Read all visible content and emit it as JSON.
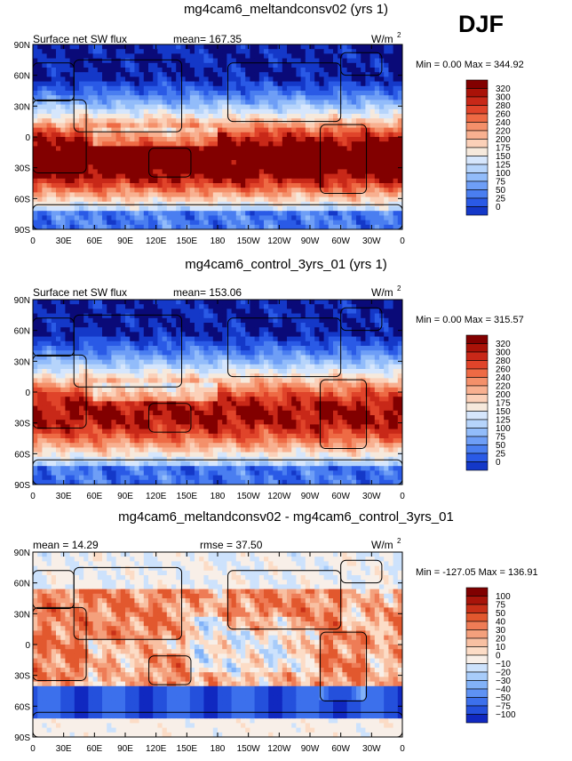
{
  "season": "DJF",
  "colors": {
    "abs_scale": [
      "#0a0a78",
      "#1438c8",
      "#2a5ae6",
      "#4a7ef0",
      "#6e9ef6",
      "#92bcfa",
      "#b6d4fb",
      "#d6e6fc",
      "#f6e9dc",
      "#fbd0b8",
      "#f8b090",
      "#f4906a",
      "#ee6a44",
      "#e0442a",
      "#c82818",
      "#aa1208",
      "#820000"
    ],
    "diff_scale": [
      "#05057a",
      "#1028c0",
      "#2450dc",
      "#3c70ec",
      "#5e92f4",
      "#82b2f8",
      "#a8ccfa",
      "#cde2fc",
      "#f8efe8",
      "#fcdcc6",
      "#f8c0a2",
      "#f4a07c",
      "#ee7c56",
      "#e2582e",
      "#c83018",
      "#a8140a",
      "#800000"
    ]
  },
  "chart_data": [
    {
      "type": "heatmap",
      "title": "mg4cam6_meltandconsv02 (yrs 1)",
      "variable": "Surface net SW flux",
      "mean_label": "mean= 167.35",
      "units": "W/m",
      "units_sup": "2",
      "minmax_label": "Min =    0.00 Max = 344.92",
      "min": 0.0,
      "max": 344.92,
      "lat_ticks": [
        "90N",
        "60N",
        "30N",
        "0",
        "30S",
        "60S",
        "90S"
      ],
      "lon_ticks": [
        "0",
        "30E",
        "60E",
        "90E",
        "120E",
        "150E",
        "180",
        "150W",
        "120W",
        "90W",
        "60W",
        "30W",
        "0"
      ],
      "colorbar_labels": [
        "320",
        "300",
        "280",
        "260",
        "240",
        "220",
        "200",
        "175",
        "150",
        "125",
        "100",
        "75",
        "50",
        "25",
        "0"
      ],
      "colorbar_levels": [
        0,
        25,
        50,
        75,
        100,
        125,
        150,
        175,
        200,
        220,
        240,
        260,
        280,
        300,
        320
      ],
      "mode": "exp"
    },
    {
      "type": "heatmap",
      "title": "mg4cam6_control_3yrs_01 (yrs 1)",
      "variable": "Surface net SW flux",
      "mean_label": "mean= 153.06",
      "units": "W/m",
      "units_sup": "2",
      "minmax_label": "Min =    0.00 Max = 315.57",
      "min": 0.0,
      "max": 315.57,
      "lat_ticks": [
        "90N",
        "60N",
        "30N",
        "0",
        "30S",
        "60S",
        "90S"
      ],
      "lon_ticks": [
        "0",
        "30E",
        "60E",
        "90E",
        "120E",
        "150E",
        "180",
        "150W",
        "120W",
        "90W",
        "60W",
        "30W",
        "0"
      ],
      "colorbar_labels": [
        "320",
        "300",
        "280",
        "260",
        "240",
        "220",
        "200",
        "175",
        "150",
        "125",
        "100",
        "75",
        "50",
        "25",
        "0"
      ],
      "colorbar_levels": [
        0,
        25,
        50,
        75,
        100,
        125,
        150,
        175,
        200,
        220,
        240,
        260,
        280,
        300,
        320
      ],
      "mode": "ctl"
    },
    {
      "type": "heatmap",
      "title": "mg4cam6_meltandconsv02 - mg4cam6_control_3yrs_01",
      "variable": "",
      "mean_label": "mean =  14.29",
      "rmse_label": "rmse =  37.50",
      "units": "W/m",
      "units_sup": "2",
      "minmax_label": "Min = -127.05 Max = 136.91",
      "min": -127.05,
      "max": 136.91,
      "lat_ticks": [
        "90N",
        "60N",
        "30N",
        "0",
        "30S",
        "60S",
        "90S"
      ],
      "lon_ticks": [
        "0",
        "30E",
        "60E",
        "90E",
        "120E",
        "150E",
        "180",
        "150W",
        "120W",
        "90W",
        "60W",
        "30W",
        "0"
      ],
      "colorbar_labels": [
        "100",
        "75",
        "50",
        "40",
        "30",
        "20",
        "10",
        "0",
        "−10",
        "−20",
        "−30",
        "−40",
        "−50",
        "−75",
        "−100"
      ],
      "colorbar_levels": [
        -100,
        -75,
        -50,
        -40,
        -30,
        -20,
        -10,
        0,
        10,
        20,
        30,
        40,
        50,
        75,
        100
      ],
      "mode": "diff"
    }
  ]
}
